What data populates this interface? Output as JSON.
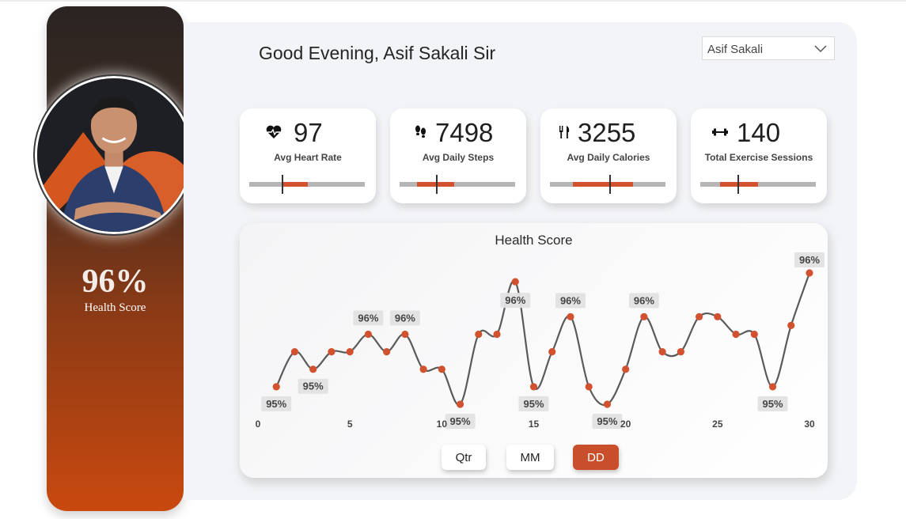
{
  "header": {
    "greeting": "Good Evening, Asif Sakali Sir",
    "user_select": {
      "value": "Asif Sakali"
    }
  },
  "sidebar": {
    "score": "96%",
    "score_label": "Health Score"
  },
  "kpis": [
    {
      "value": "97",
      "label": "Avg Heart Rate",
      "icon": "heart-pulse-icon",
      "bar_fill_fraction": 0.22,
      "bar_fill_start_fraction": 0.29,
      "target_fraction": 0.29
    },
    {
      "value": "7498",
      "label": "Avg Daily Steps",
      "icon": "footsteps-icon",
      "bar_fill_fraction": 0.32,
      "bar_fill_start_fraction": 0.15,
      "target_fraction": 0.32
    },
    {
      "value": "3255",
      "label": "Avg Daily Calories",
      "icon": "fork-knife-icon",
      "bar_fill_fraction": 0.52,
      "bar_fill_start_fraction": 0.2,
      "target_fraction": 0.52
    },
    {
      "value": "140",
      "label": "Total Exercise Sessions",
      "icon": "dumbbell-icon",
      "bar_fill_fraction": 0.33,
      "bar_fill_start_fraction": 0.17,
      "target_fraction": 0.33
    }
  ],
  "buttons": [
    {
      "label": "Qtr",
      "active": false
    },
    {
      "label": "MM",
      "active": false
    },
    {
      "label": "DD",
      "active": true
    }
  ],
  "colors": {
    "accent": "#c94f2c",
    "marker": "#d2522f",
    "line": "#5a5a5a"
  },
  "chart_data": {
    "type": "line",
    "title": "Health Score",
    "x": [
      1,
      2,
      3,
      4,
      5,
      6,
      7,
      8,
      9,
      10,
      11,
      12,
      13,
      14,
      15,
      16,
      17,
      18,
      19,
      20,
      21,
      22,
      23,
      24,
      25,
      26,
      27,
      28,
      29,
      30
    ],
    "series": [
      {
        "values": [
          95.0,
          95.4,
          95.2,
          95.4,
          95.4,
          95.6,
          95.4,
          95.6,
          95.2,
          95.2,
          94.8,
          95.6,
          95.6,
          96.2,
          95.0,
          95.4,
          95.8,
          95.0,
          94.8,
          95.2,
          95.8,
          95.4,
          95.4,
          95.8,
          95.8,
          95.6,
          95.6,
          95.0,
          95.7,
          96.3
        ]
      }
    ],
    "data_labels": [
      {
        "x": 1,
        "text": "95%"
      },
      {
        "x": 3,
        "text": "95%"
      },
      {
        "x": 6,
        "text": "96%"
      },
      {
        "x": 8,
        "text": "96%"
      },
      {
        "x": 11,
        "text": "95%"
      },
      {
        "x": 14,
        "text": "96%"
      },
      {
        "x": 15,
        "text": "95%"
      },
      {
        "x": 17,
        "text": "96%"
      },
      {
        "x": 19,
        "text": "95%"
      },
      {
        "x": 21,
        "text": "96%"
      },
      {
        "x": 28,
        "text": "95%"
      },
      {
        "x": 30,
        "text": "96%"
      }
    ],
    "x_ticks": [
      0,
      5,
      10,
      15,
      20,
      25,
      30
    ],
    "xlim": [
      0,
      30
    ],
    "grid": false,
    "legend": "none"
  }
}
